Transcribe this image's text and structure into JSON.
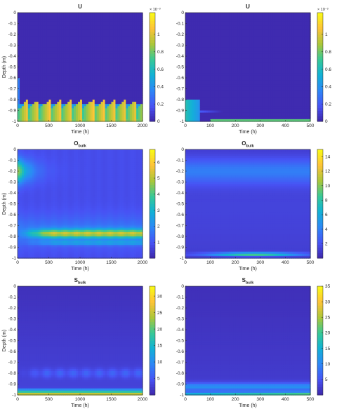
{
  "figure": {
    "panels": [
      {
        "title": "U",
        "title_sub": "",
        "xlabel": "Time (h)",
        "ylabel": "Depth (m)",
        "xlim": [
          0,
          2000
        ],
        "ylim": [
          -1,
          0
        ],
        "xticks": [
          0,
          500,
          1000,
          1500,
          2000
        ],
        "yticks": [
          0,
          -0.1,
          -0.2,
          -0.3,
          -0.4,
          -0.5,
          -0.6,
          -0.7,
          -0.8,
          -0.9,
          -1
        ],
        "clim": [
          0,
          0.00125
        ],
        "cbar_ticks": [
          "0",
          "0.2",
          "0.4",
          "0.6",
          "0.8",
          "1"
        ],
        "cbar_tick_values": [
          0,
          0.0002,
          0.0004,
          0.0006,
          0.0008,
          0.001
        ],
        "cbar_exponent": "× 10⁻³",
        "pattern": "u_long"
      },
      {
        "title": "U",
        "title_sub": "",
        "xlabel": "Time (h)",
        "ylabel": "",
        "xlim": [
          0,
          500
        ],
        "ylim": [
          -1,
          0
        ],
        "xticks": [
          0,
          100,
          200,
          300,
          400,
          500
        ],
        "yticks": [
          0,
          -0.1,
          -0.2,
          -0.3,
          -0.4,
          -0.5,
          -0.6,
          -0.7,
          -0.8,
          -0.9,
          -1
        ],
        "clim": [
          0,
          0.00125
        ],
        "cbar_ticks": [
          "0",
          "0.2",
          "0.4",
          "0.6",
          "0.8",
          "1"
        ],
        "cbar_tick_values": [
          0,
          0.0002,
          0.0004,
          0.0006,
          0.0008,
          0.001
        ],
        "cbar_exponent": "× 10⁻³",
        "pattern": "u_short"
      },
      {
        "title": "O",
        "title_sub": "bulk",
        "xlabel": "Time (h)",
        "ylabel": "Depth (m)",
        "xlim": [
          0,
          2000
        ],
        "ylim": [
          -1,
          0
        ],
        "xticks": [
          0,
          500,
          1000,
          1500,
          2000
        ],
        "yticks": [
          0,
          -0.1,
          -0.2,
          -0.3,
          -0.4,
          -0.5,
          -0.6,
          -0.7,
          -0.8,
          -0.9,
          -1
        ],
        "clim": [
          0,
          6.8
        ],
        "cbar_ticks": [
          "1",
          "2",
          "3",
          "4",
          "5",
          "6"
        ],
        "cbar_tick_values": [
          1,
          2,
          3,
          4,
          5,
          6
        ],
        "cbar_exponent": "",
        "pattern": "o_long"
      },
      {
        "title": "O",
        "title_sub": "bulk",
        "xlabel": "Time (h)",
        "ylabel": "",
        "xlim": [
          0,
          500
        ],
        "ylim": [
          -1,
          0
        ],
        "xticks": [
          0,
          100,
          200,
          300,
          400,
          500
        ],
        "yticks": [
          0,
          -0.1,
          -0.2,
          -0.3,
          -0.4,
          -0.5,
          -0.6,
          -0.7,
          -0.8,
          -0.9,
          -1
        ],
        "clim": [
          0,
          15
        ],
        "cbar_ticks": [
          "2",
          "4",
          "6",
          "8",
          "10",
          "12",
          "14"
        ],
        "cbar_tick_values": [
          2,
          4,
          6,
          8,
          10,
          12,
          14
        ],
        "cbar_exponent": "",
        "pattern": "o_short"
      },
      {
        "title": "S",
        "title_sub": "bulk",
        "xlabel": "Time (h)",
        "ylabel": "Depth (m)",
        "xlim": [
          0,
          2000
        ],
        "ylim": [
          -1,
          0
        ],
        "xticks": [
          0,
          500,
          1000,
          1500,
          2000
        ],
        "yticks": [
          0,
          -0.1,
          -0.2,
          -0.3,
          -0.4,
          -0.5,
          -0.6,
          -0.7,
          -0.8,
          -0.9,
          -1
        ],
        "clim": [
          0,
          33
        ],
        "cbar_ticks": [
          "5",
          "10",
          "15",
          "20",
          "25",
          "30"
        ],
        "cbar_tick_values": [
          5,
          10,
          15,
          20,
          25,
          30
        ],
        "cbar_exponent": "",
        "pattern": "s_long"
      },
      {
        "title": "S",
        "title_sub": "bulk",
        "xlabel": "Time (h)",
        "ylabel": "",
        "xlim": [
          0,
          500
        ],
        "ylim": [
          -1,
          0
        ],
        "xticks": [
          0,
          100,
          200,
          300,
          400,
          500
        ],
        "yticks": [
          0,
          -0.1,
          -0.2,
          -0.3,
          -0.4,
          -0.5,
          -0.6,
          -0.7,
          -0.8,
          -0.9,
          -1
        ],
        "clim": [
          0,
          35
        ],
        "cbar_ticks": [
          "5",
          "10",
          "15",
          "20",
          "25",
          "30",
          "35"
        ],
        "cbar_tick_values": [
          5,
          10,
          15,
          20,
          25,
          30,
          35
        ],
        "cbar_exponent": "",
        "pattern": "s_short"
      }
    ]
  },
  "chart_data": [
    {
      "type": "heatmap",
      "title": "U",
      "xlabel": "Time (h)",
      "ylabel": "Depth (m)",
      "xlim": [
        0,
        2000
      ],
      "ylim": [
        -1,
        0
      ],
      "colorbar": {
        "range": [
          0,
          0.00125
        ],
        "multiplier": "10^-3"
      },
      "grid": false
    },
    {
      "type": "heatmap",
      "title": "U",
      "xlabel": "Time (h)",
      "ylabel": "",
      "xlim": [
        0,
        500
      ],
      "ylim": [
        -1,
        0
      ],
      "colorbar": {
        "range": [
          0,
          0.00125
        ],
        "multiplier": "10^-3"
      },
      "grid": false
    },
    {
      "type": "heatmap",
      "title": "O_bulk",
      "xlabel": "Time (h)",
      "ylabel": "Depth (m)",
      "xlim": [
        0,
        2000
      ],
      "ylim": [
        -1,
        0
      ],
      "colorbar": {
        "range": [
          0,
          6.8
        ]
      },
      "grid": false
    },
    {
      "type": "heatmap",
      "title": "O_bulk",
      "xlabel": "Time (h)",
      "ylabel": "",
      "xlim": [
        0,
        500
      ],
      "ylim": [
        -1,
        0
      ],
      "colorbar": {
        "range": [
          0,
          15
        ]
      },
      "grid": false
    },
    {
      "type": "heatmap",
      "title": "S_bulk",
      "xlabel": "Time (h)",
      "ylabel": "Depth (m)",
      "xlim": [
        0,
        2000
      ],
      "ylim": [
        -1,
        0
      ],
      "colorbar": {
        "range": [
          0,
          33
        ]
      },
      "grid": false
    },
    {
      "type": "heatmap",
      "title": "S_bulk",
      "xlabel": "Time (h)",
      "ylabel": "",
      "xlim": [
        0,
        500
      ],
      "ylim": [
        -1,
        0
      ],
      "colorbar": {
        "range": [
          0,
          35
        ]
      },
      "grid": false
    }
  ]
}
